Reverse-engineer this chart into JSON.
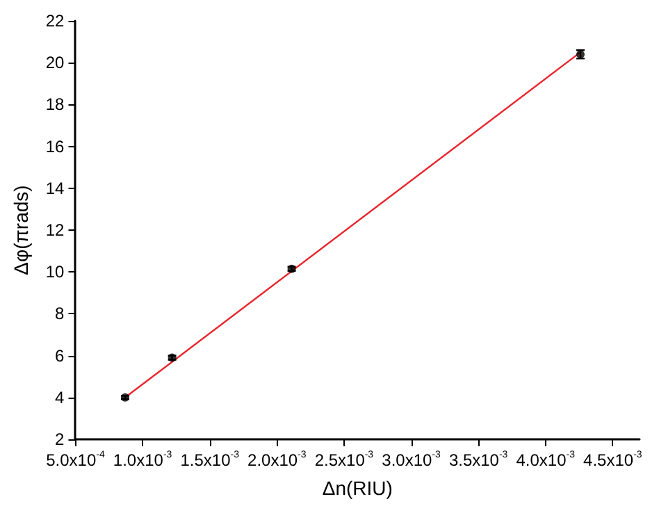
{
  "chart_data": {
    "type": "scatter",
    "xlabel": "Δn(RIU)",
    "ylabel": "Δφ(πrads)",
    "xlim": [
      0.0005,
      0.0047
    ],
    "ylim": [
      2,
      22
    ],
    "xticks": [
      {
        "value": 0.0005,
        "label": "5.0x10$^{-4}$"
      },
      {
        "value": 0.001,
        "label": "1.0x10$^{-3}$"
      },
      {
        "value": 0.0015,
        "label": "1.5x10$^{-3}$"
      },
      {
        "value": 0.002,
        "label": "2.0x10$^{-3}$"
      },
      {
        "value": 0.0025,
        "label": "2.5x10$^{-3}$"
      },
      {
        "value": 0.003,
        "label": "3.0x10$^{-3}$"
      },
      {
        "value": 0.0035,
        "label": "3.5x10$^{-3}$"
      },
      {
        "value": 0.004,
        "label": "4.0x10$^{-3}$"
      },
      {
        "value": 0.0045,
        "label": "4.5x10$^{-3}$"
      }
    ],
    "yticks": [
      2,
      4,
      6,
      8,
      10,
      12,
      14,
      16,
      18,
      20,
      22
    ],
    "marker": "circle",
    "grid": false,
    "series": [
      {
        "color": "#000000",
        "x": [
          0.00087,
          0.00122,
          0.00211,
          0.00426
        ],
        "values": [
          4.0,
          5.9,
          10.15,
          20.4
        ],
        "errors": [
          0.08,
          0.1,
          0.1,
          0.2
        ]
      },
      {
        "type": "line",
        "color": "#e8242c",
        "x": [
          0.00087,
          0.00426
        ],
        "values": [
          4.0,
          20.5
        ],
        "marker": "none",
        "line_style": "solid"
      }
    ]
  }
}
